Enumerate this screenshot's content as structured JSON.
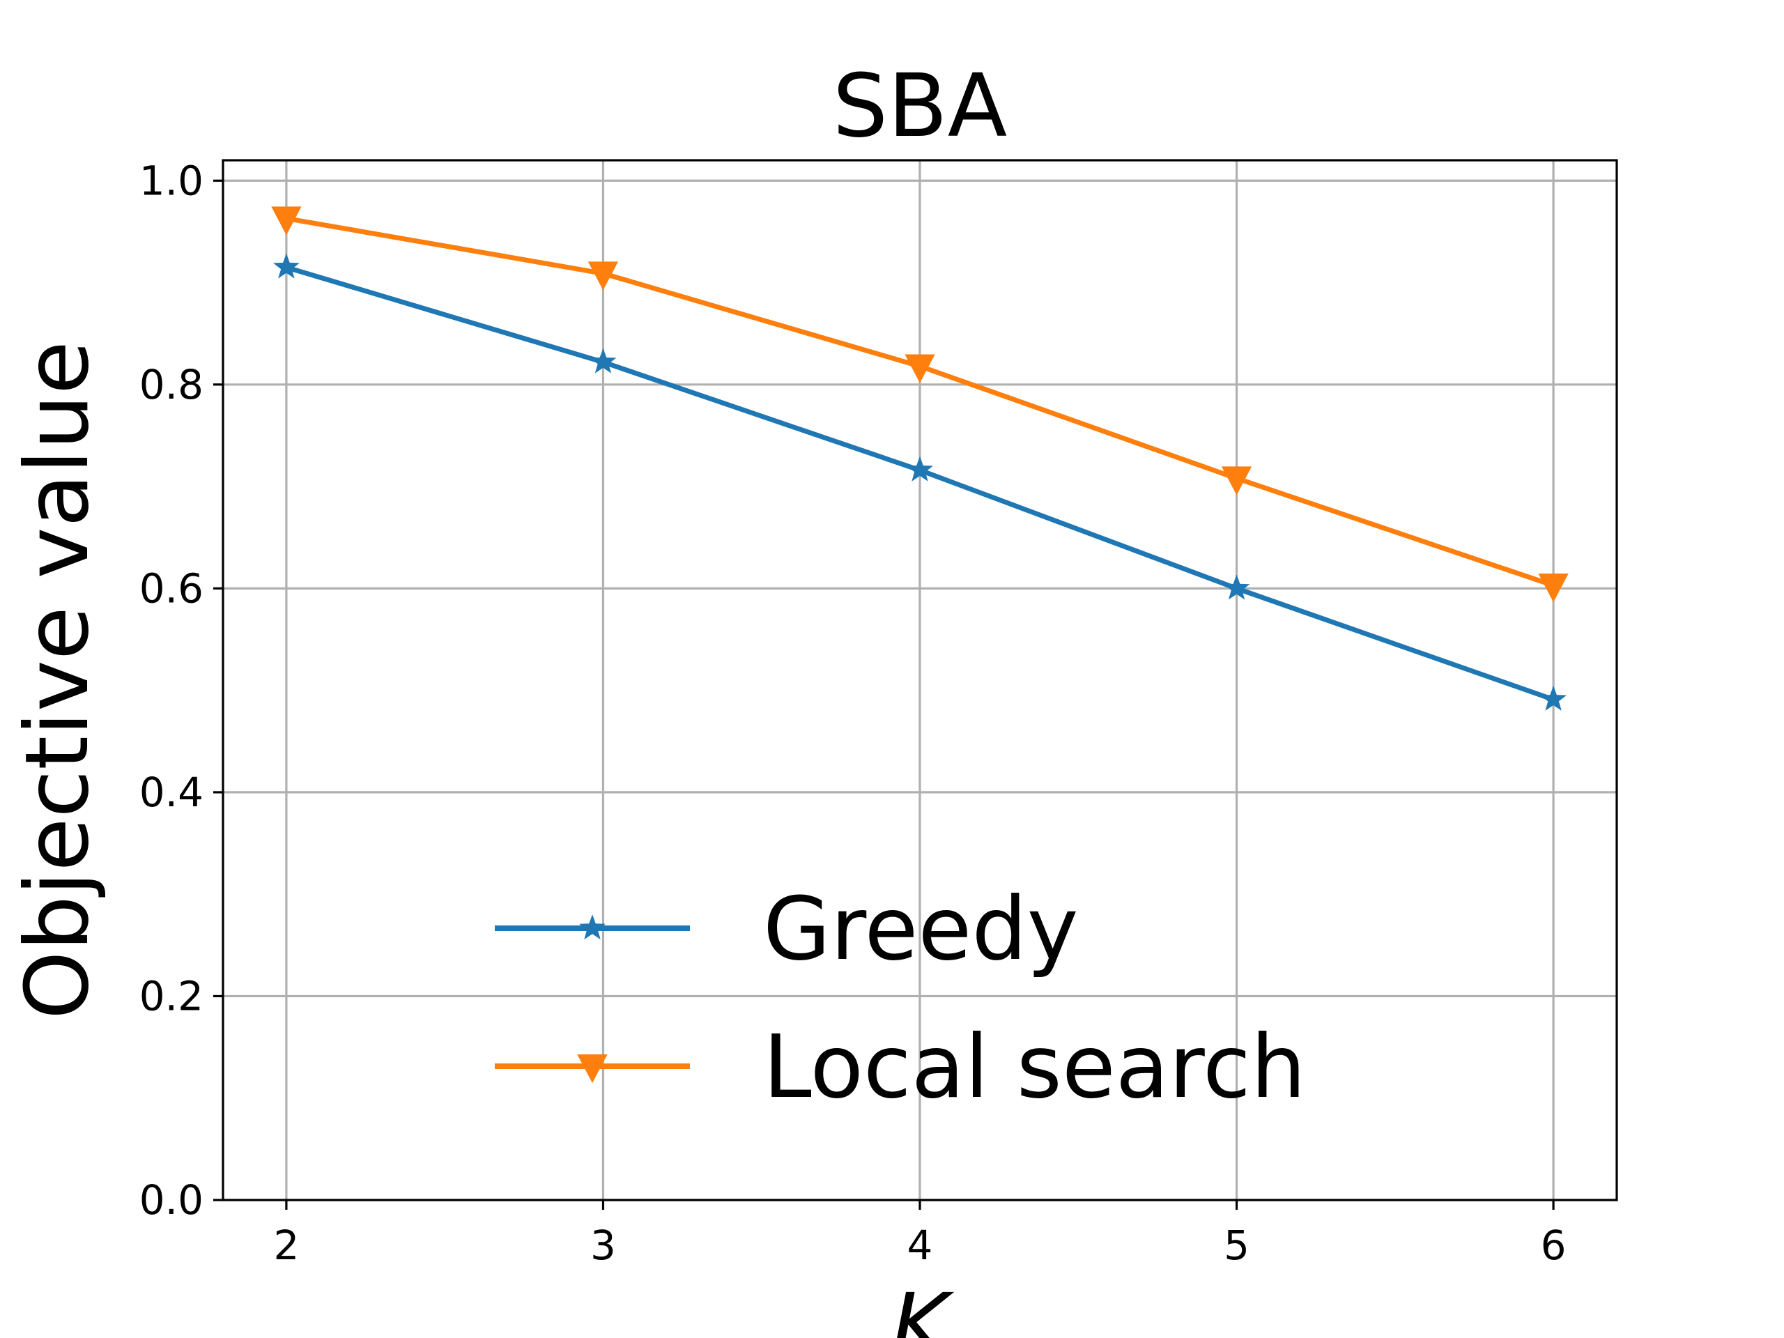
{
  "chart_data": {
    "type": "line",
    "title": "SBA",
    "xlabel": "K",
    "ylabel": "Objective value",
    "x": [
      2,
      3,
      4,
      5,
      6
    ],
    "xlim": [
      1.8,
      6.2
    ],
    "ylim": [
      0.0,
      1.02
    ],
    "xticks": [
      "2",
      "3",
      "4",
      "5",
      "6"
    ],
    "yticks": [
      "0.0",
      "0.2",
      "0.4",
      "0.6",
      "0.8",
      "1.0"
    ],
    "grid": true,
    "legend_position": "lower-center",
    "series": [
      {
        "name": "Greedy",
        "values": [
          0.915,
          0.822,
          0.716,
          0.6,
          0.491
        ],
        "marker": "star",
        "color": "#1f77b4"
      },
      {
        "name": "Local search",
        "values": [
          0.963,
          0.909,
          0.818,
          0.708,
          0.603
        ],
        "marker": "triangle-down",
        "color": "#ff7f0e"
      }
    ]
  }
}
